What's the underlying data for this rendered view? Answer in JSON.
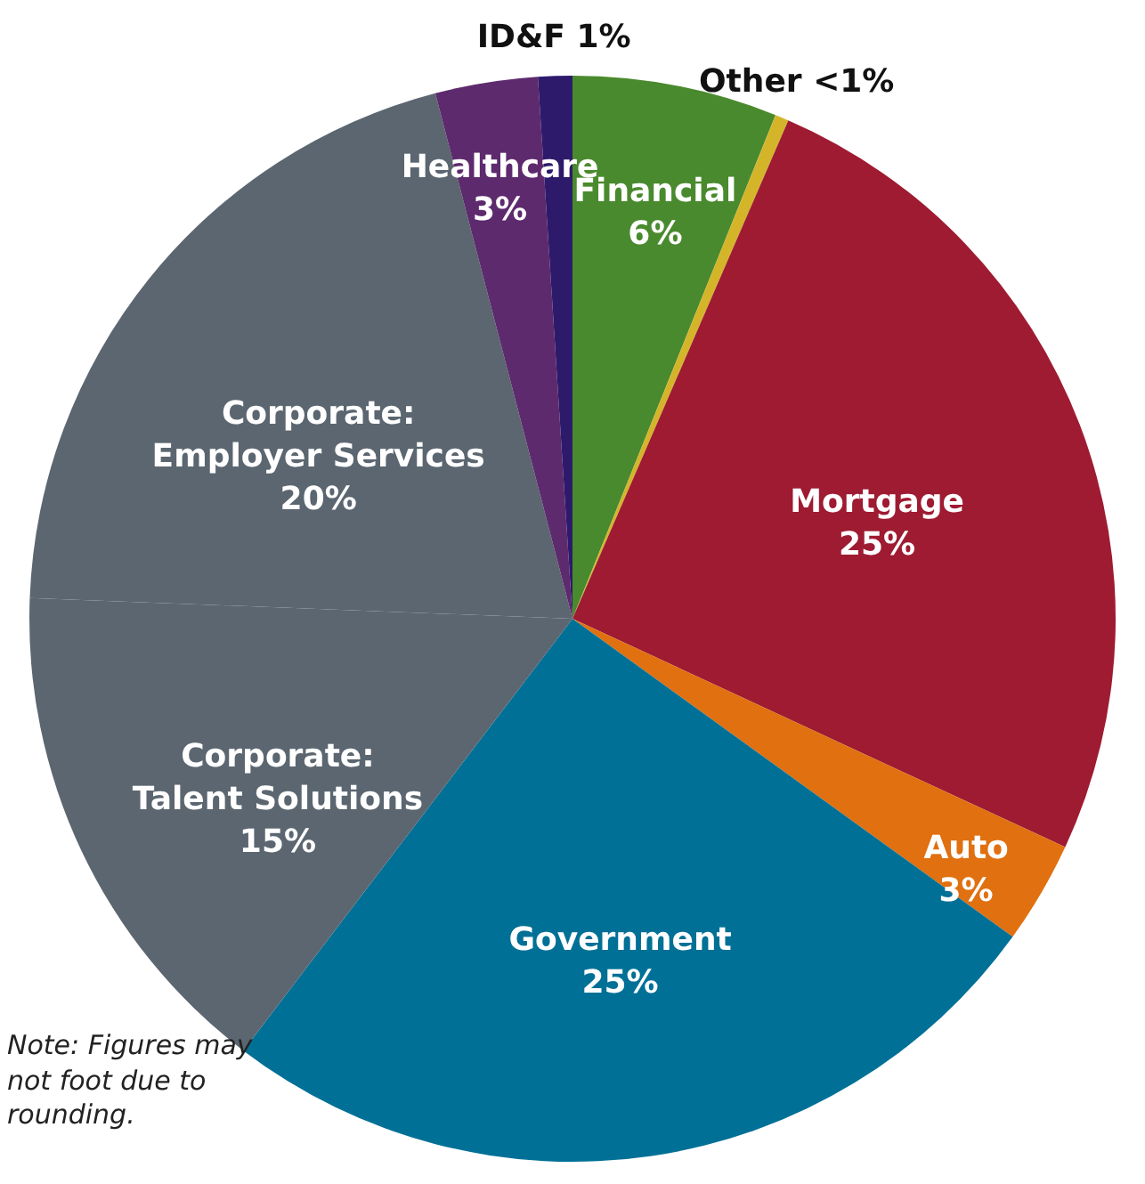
{
  "chart_data": {
    "type": "pie",
    "categories": [
      "Financial",
      "Other",
      "Mortgage",
      "Auto",
      "Government",
      "Corporate: Talent Solutions",
      "Corporate: Employer Services",
      "Healthcare",
      "ID&F"
    ],
    "values": [
      6,
      0.4,
      25,
      3,
      25,
      15,
      20,
      3,
      1
    ],
    "value_labels": [
      "6%",
      "<1%",
      "25%",
      "3%",
      "25%",
      "15%",
      "20%",
      "3%",
      "1%"
    ],
    "colors": [
      "#4a8a2e",
      "#d4b52a",
      "#9e1b32",
      "#e07010",
      "#007096",
      "#5b6670",
      "#5b6670",
      "#5e2a6e",
      "#2e1a6b"
    ],
    "annotations": [
      "Note: Figures may not foot due to rounding."
    ],
    "legend": false
  }
}
